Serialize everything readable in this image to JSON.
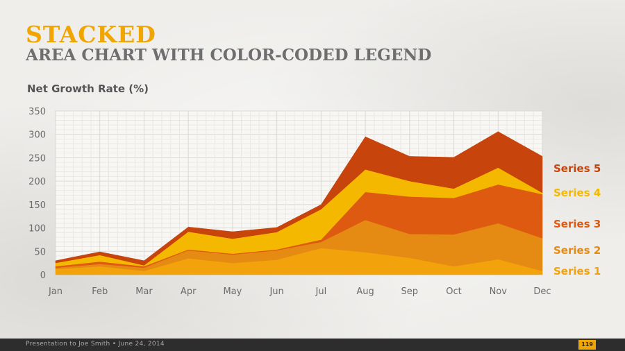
{
  "header": {
    "title": "STACKED",
    "subtitle": "AREA CHART WITH COLOR-CODED LEGEND"
  },
  "chart_data": {
    "type": "area",
    "stacked": true,
    "ylabel": "Net Growth Rate (%)",
    "xlabel": "",
    "ylim": [
      0,
      350
    ],
    "yticks": [
      0,
      50,
      100,
      150,
      200,
      250,
      300,
      350
    ],
    "categories": [
      "Jan",
      "Feb",
      "Mar",
      "Apr",
      "May",
      "Jun",
      "Jul",
      "Aug",
      "Sep",
      "Oct",
      "Nov",
      "Dec"
    ],
    "grid": true,
    "legend_position": "right",
    "series": [
      {
        "name": "Series 1",
        "color": "#f2a20a",
        "values": [
          12,
          18,
          8,
          35,
          25,
          32,
          57,
          48,
          36,
          18,
          33,
          8
        ]
      },
      {
        "name": "Series 2",
        "color": "#e58a12",
        "values": [
          3,
          5,
          7,
          17,
          18,
          20,
          13,
          69,
          51,
          68,
          77,
          70
        ]
      },
      {
        "name": "Series 3",
        "color": "#de5a10",
        "values": [
          3,
          5,
          3,
          2,
          2,
          2,
          5,
          60,
          80,
          78,
          83,
          94
        ]
      },
      {
        "name": "Series 4",
        "color": "#f5b800",
        "values": [
          7,
          14,
          2,
          38,
          32,
          37,
          65,
          48,
          33,
          20,
          36,
          3
        ]
      },
      {
        "name": "Series 5",
        "color": "#c7440c",
        "values": [
          5,
          7,
          10,
          10,
          15,
          10,
          10,
          70,
          53,
          67,
          77,
          78
        ]
      }
    ]
  },
  "footer": {
    "text": "Presentation to Joe Smith • June 24, 2014",
    "page": "119"
  }
}
